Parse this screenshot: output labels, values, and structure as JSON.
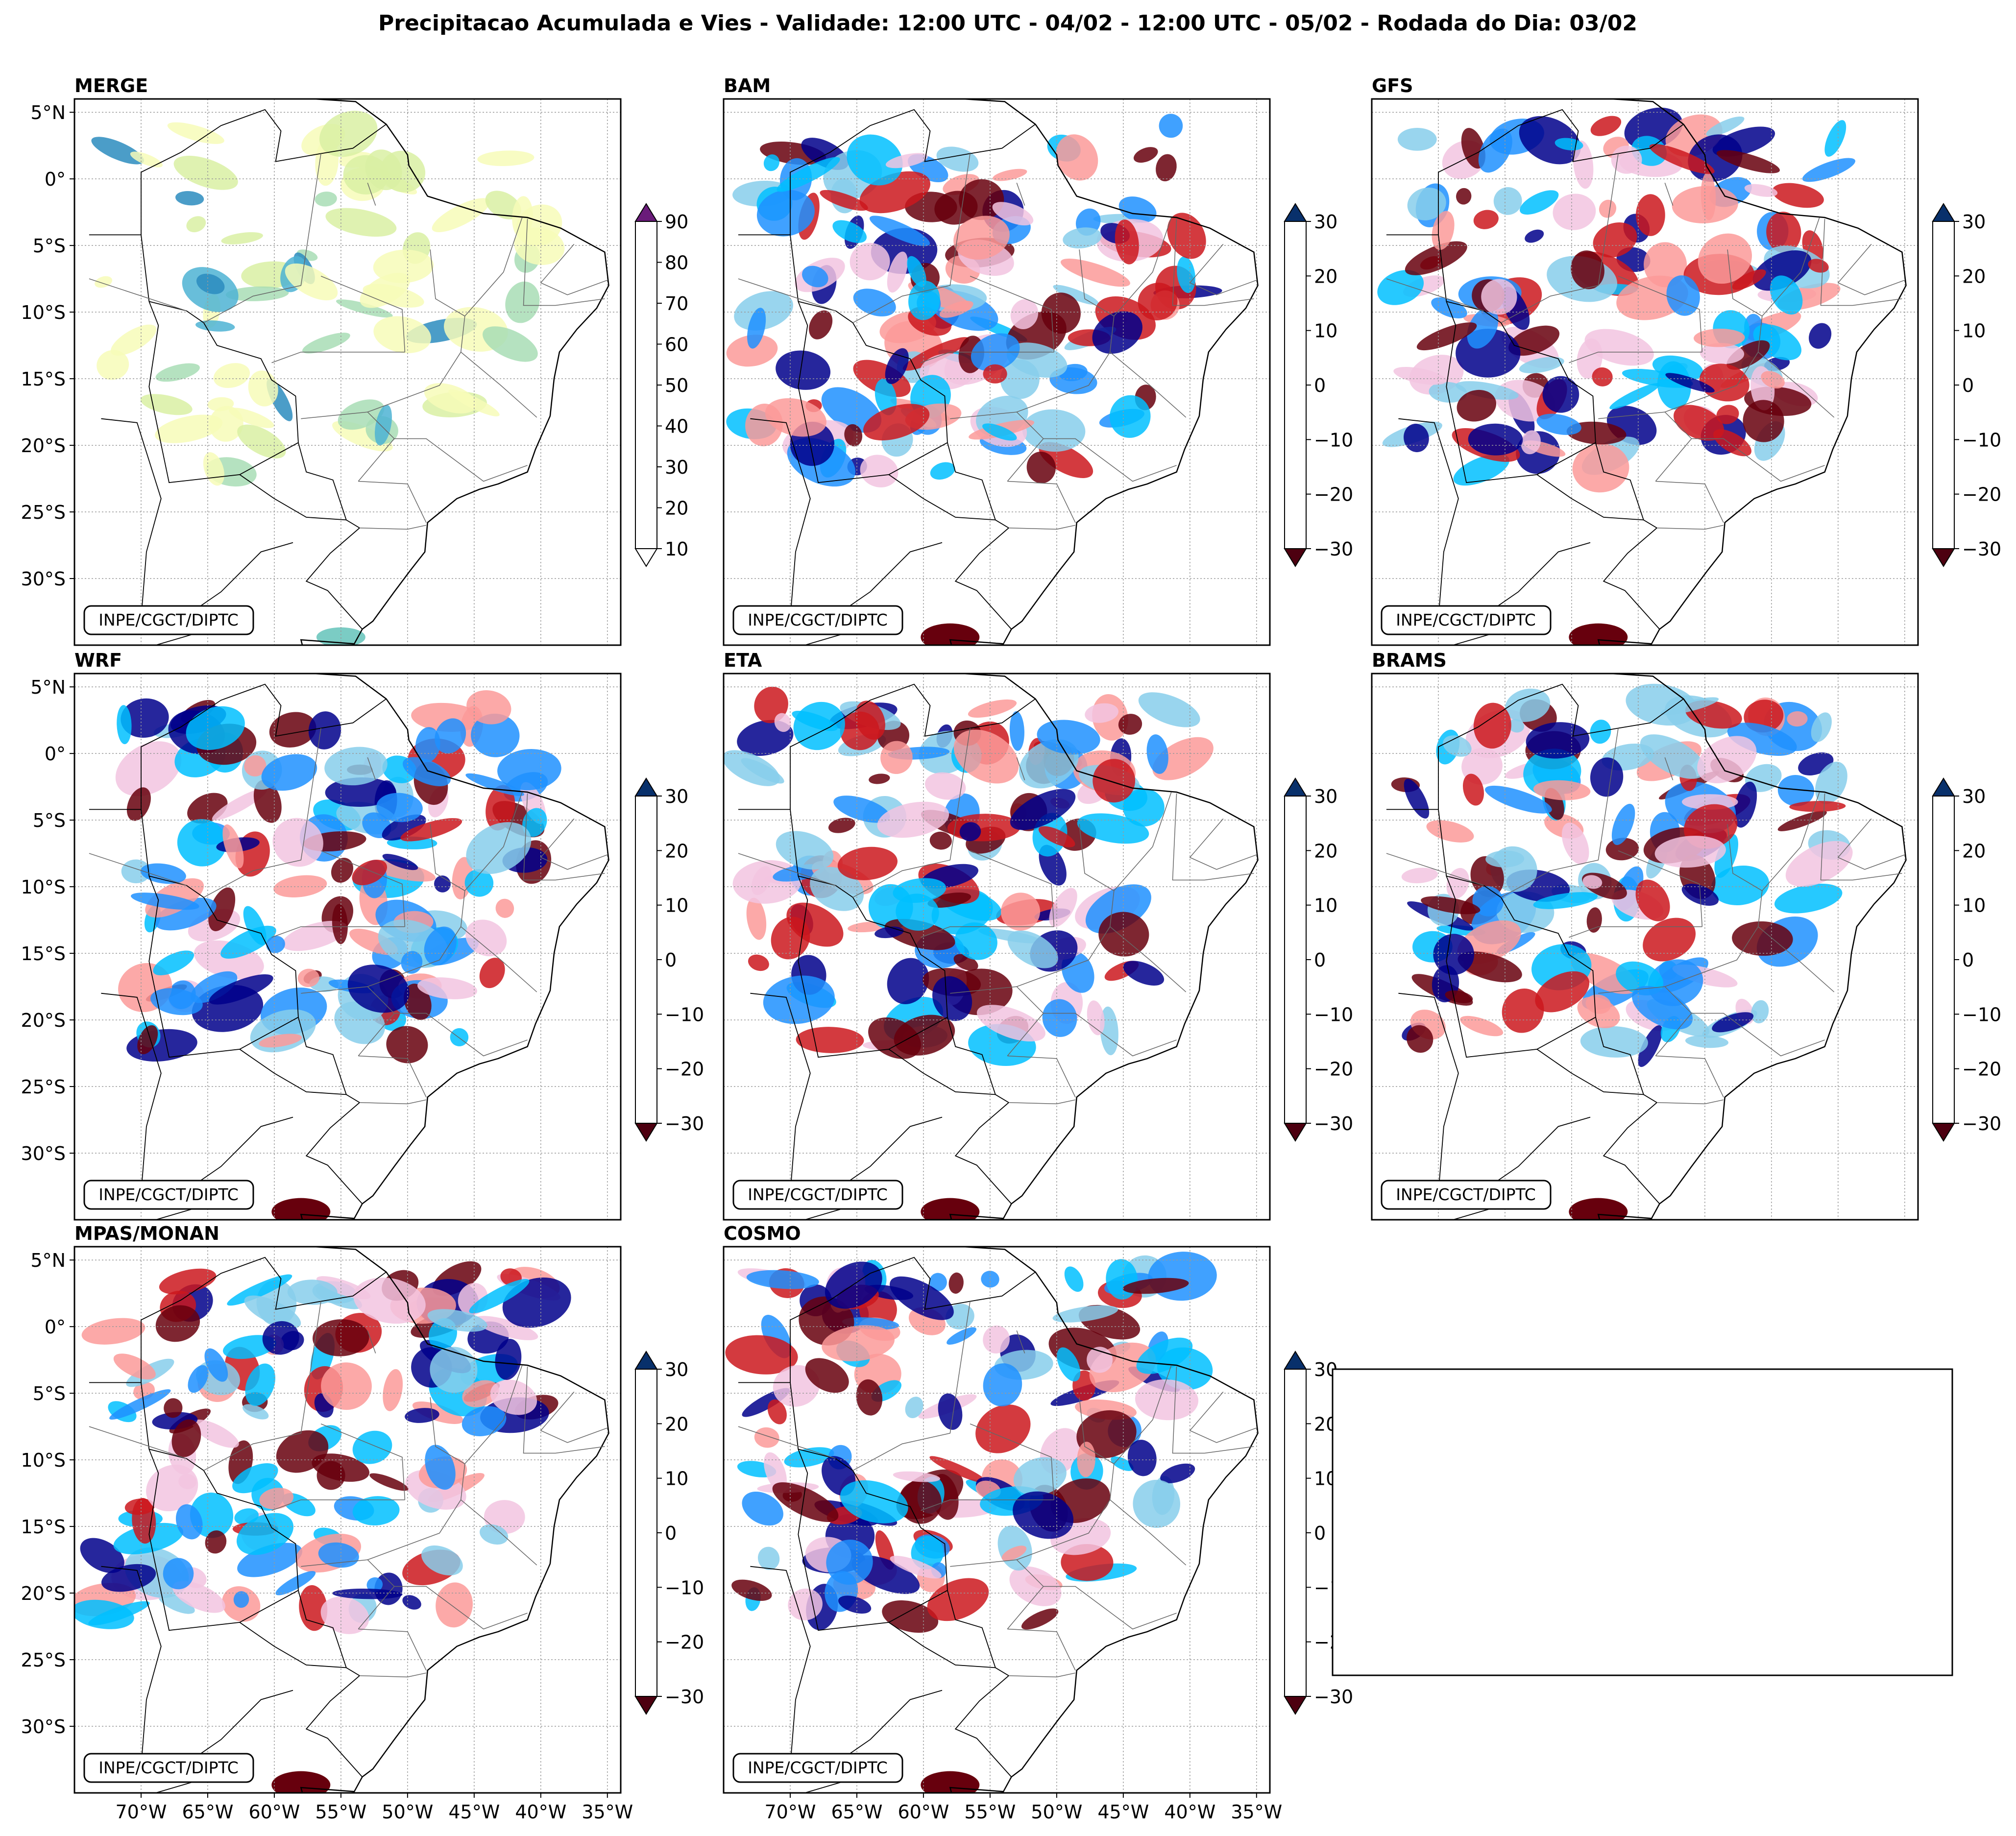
{
  "title": "Precipitacao Acumulada e Vies - Validade: 12:00 UTC - 04/02 - 12:00 UTC - 05/02 - Rodada do Dia: 03/02",
  "credit": "INPE/CGCT/DIPTC",
  "axes": {
    "lat_ticks": [
      "5°N",
      "0°",
      "5°S",
      "10°S",
      "15°S",
      "20°S",
      "25°S",
      "30°S"
    ],
    "lat_values": [
      5,
      0,
      -5,
      -10,
      -15,
      -20,
      -25,
      -30
    ],
    "lon_ticks": [
      "70°W",
      "65°W",
      "60°W",
      "55°W",
      "50°W",
      "45°W",
      "40°W",
      "35°W"
    ],
    "lon_values": [
      -70,
      -65,
      -60,
      -55,
      -50,
      -45,
      -40,
      -35
    ],
    "lon_range": [
      -75,
      -34
    ],
    "lat_range": [
      -35,
      6
    ]
  },
  "colorbars": {
    "precip": {
      "ticks": [
        "90",
        "80",
        "70",
        "60",
        "50",
        "40",
        "30",
        "20",
        "10"
      ],
      "colors": [
        "#f7fcb9",
        "#d9f0a3",
        "#a8ddb5",
        "#7bccc4",
        "#4eb3d3",
        "#2b8cbe",
        "#0868ac",
        "#253494",
        "#081d58"
      ],
      "extend_max_color": "#6a1b7a"
    },
    "bias": {
      "ticks": [
        "30",
        "20",
        "10",
        "0",
        "−10",
        "−20",
        "−30"
      ],
      "colors": [
        "#67000d",
        "#a50f15",
        "#cb181d",
        "#ef3b2c",
        "#fb9a99",
        "#f2c4e0",
        "#ffffff",
        "#ffffff",
        "#87ceeb",
        "#00bfff",
        "#1e90ff",
        "#4169e1",
        "#0000cd",
        "#00008b"
      ],
      "extend_max_color": "#08306b",
      "extend_min_color": "#4d0010"
    }
  },
  "chart_data": [
    {
      "type": "heatmap",
      "title": "MERGE",
      "variable": "accumulated precipitation (mm)",
      "levels": [
        10,
        20,
        30,
        40,
        50,
        60,
        70,
        80,
        90
      ]
    },
    {
      "type": "heatmap",
      "title": "BAM",
      "variable": "bias (mm)",
      "levels": [
        -30,
        -25,
        -20,
        -15,
        -10,
        -5,
        0,
        5,
        10,
        15,
        20,
        25,
        30
      ]
    },
    {
      "type": "heatmap",
      "title": "GFS",
      "variable": "bias (mm)",
      "levels": [
        -30,
        -25,
        -20,
        -15,
        -10,
        -5,
        0,
        5,
        10,
        15,
        20,
        25,
        30
      ]
    },
    {
      "type": "heatmap",
      "title": "WRF",
      "variable": "bias (mm)",
      "levels": [
        -30,
        -25,
        -20,
        -15,
        -10,
        -5,
        0,
        5,
        10,
        15,
        20,
        25,
        30
      ]
    },
    {
      "type": "heatmap",
      "title": "ETA",
      "variable": "bias (mm)",
      "levels": [
        -30,
        -25,
        -20,
        -15,
        -10,
        -5,
        0,
        5,
        10,
        15,
        20,
        25,
        30
      ]
    },
    {
      "type": "heatmap",
      "title": "BRAMS",
      "variable": "bias (mm)",
      "levels": [
        -30,
        -25,
        -20,
        -15,
        -10,
        -5,
        0,
        5,
        10,
        15,
        20,
        25,
        30
      ]
    },
    {
      "type": "heatmap",
      "title": "MPAS/MONAN",
      "variable": "bias (mm)",
      "levels": [
        -30,
        -25,
        -20,
        -15,
        -10,
        -5,
        0,
        5,
        10,
        15,
        20,
        25,
        30
      ]
    },
    {
      "type": "heatmap",
      "title": "COSMO",
      "variable": "bias (mm)",
      "levels": [
        -30,
        -25,
        -20,
        -15,
        -10,
        -5,
        0,
        5,
        10,
        15,
        20,
        25,
        30
      ]
    }
  ]
}
